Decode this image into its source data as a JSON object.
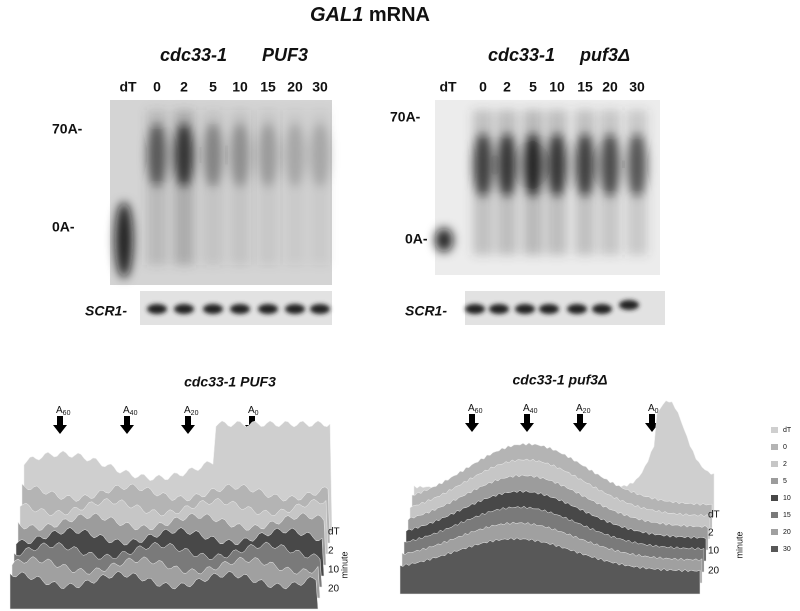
{
  "title": {
    "gene": "GAL1",
    "rest": "mRNA"
  },
  "blots": [
    {
      "strain": "cdc33-1",
      "allele": "PUF3",
      "lanes": [
        "dT",
        "0",
        "2",
        "5",
        "10",
        "15",
        "20",
        "30"
      ],
      "markers": [
        "70A-",
        "0A-"
      ],
      "loading": "SCR1-"
    },
    {
      "strain": "cdc33-1",
      "allele": "puf3Δ",
      "lanes": [
        "dT",
        "0",
        "2",
        "5",
        "10",
        "15",
        "20",
        "30"
      ],
      "markers": [
        "70A-",
        "0A-"
      ],
      "loading": "SCR1-"
    }
  ],
  "profiles": [
    {
      "title": "cdc33-1 PUF3",
      "arrows": [
        {
          "base": "A",
          "sub": "60"
        },
        {
          "base": "A",
          "sub": "40"
        },
        {
          "base": "A",
          "sub": "20"
        },
        {
          "base": "A",
          "sub": "0"
        }
      ],
      "axis_labels": [
        "dT",
        "2",
        "10",
        "20"
      ],
      "axis_title": "minute"
    },
    {
      "title": "cdc33-1 puf3Δ",
      "arrows": [
        {
          "base": "A",
          "sub": "60"
        },
        {
          "base": "A",
          "sub": "40"
        },
        {
          "base": "A",
          "sub": "20"
        },
        {
          "base": "A",
          "sub": "0"
        }
      ],
      "axis_labels": [
        "dT",
        "2",
        "10",
        "20"
      ],
      "axis_title": "minute"
    }
  ],
  "legend": [
    "dT",
    "0",
    "2",
    "5",
    "10",
    "15",
    "20",
    "30"
  ]
}
